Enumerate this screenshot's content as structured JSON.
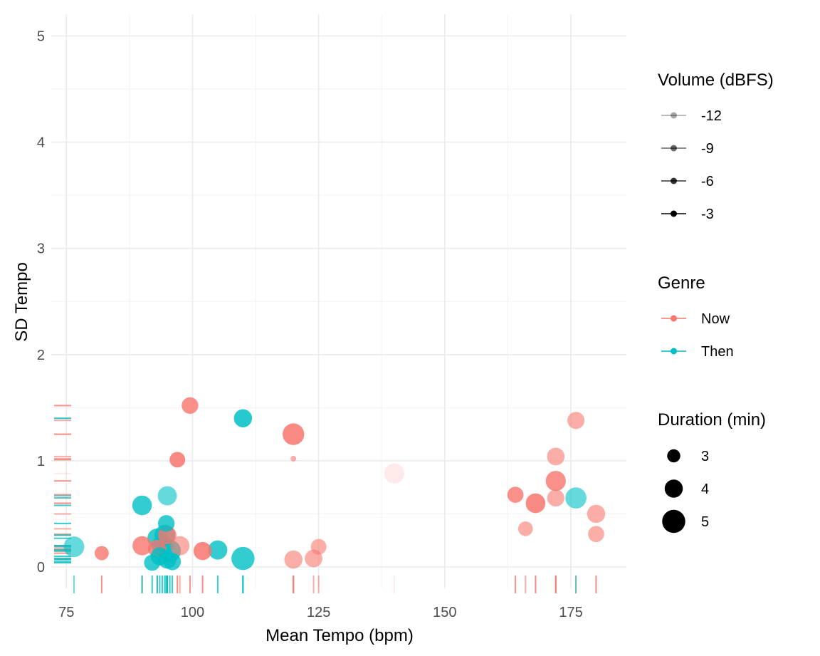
{
  "chart_data": {
    "type": "scatter",
    "title": "",
    "xlabel": "Mean Tempo (bpm)",
    "ylabel": "SD Tempo",
    "xlim": [
      72,
      186
    ],
    "ylim": [
      0,
      5.2
    ],
    "xticks": [
      75,
      100,
      125,
      150,
      175
    ],
    "yticks": [
      0,
      1,
      2,
      3,
      4,
      5
    ],
    "grid": true,
    "legend_position": "right",
    "legends": {
      "volume": {
        "title": "Volume (dBFS)",
        "entries": [
          {
            "label": "-12",
            "alpha": 0.35
          },
          {
            "label": "-9",
            "alpha": 0.6
          },
          {
            "label": "-6",
            "alpha": 0.8
          },
          {
            "label": "-3",
            "alpha": 1.0
          }
        ]
      },
      "genre": {
        "title": "Genre",
        "entries": [
          {
            "label": "Now",
            "color": "#F8766D"
          },
          {
            "label": "Then",
            "color": "#00BFC4"
          }
        ]
      },
      "duration": {
        "title": "Duration (min)",
        "entries": [
          {
            "label": "3",
            "value": 3
          },
          {
            "label": "4",
            "value": 4
          },
          {
            "label": "5",
            "value": 5
          }
        ]
      }
    },
    "series": [
      {
        "name": "Now",
        "color": "#F8766D",
        "points": [
          {
            "x": 82,
            "y": 0.13,
            "duration": 3.2,
            "alpha": 0.8
          },
          {
            "x": 90,
            "y": 0.2,
            "duration": 4.2,
            "alpha": 0.8
          },
          {
            "x": 93,
            "y": 0.17,
            "duration": 4.0,
            "alpha": 0.8
          },
          {
            "x": 95,
            "y": 0.3,
            "duration": 4.0,
            "alpha": 0.8
          },
          {
            "x": 97,
            "y": 1.01,
            "duration": 3.5,
            "alpha": 0.85
          },
          {
            "x": 97.5,
            "y": 0.2,
            "duration": 4.2,
            "alpha": 0.6
          },
          {
            "x": 99.5,
            "y": 1.52,
            "duration": 3.7,
            "alpha": 0.8
          },
          {
            "x": 102,
            "y": 0.15,
            "duration": 4.0,
            "alpha": 0.85
          },
          {
            "x": 120,
            "y": 1.25,
            "duration": 4.7,
            "alpha": 0.85
          },
          {
            "x": 120,
            "y": 1.02,
            "duration": 1.5,
            "alpha": 0.6
          },
          {
            "x": 120,
            "y": 0.07,
            "duration": 4.0,
            "alpha": 0.6
          },
          {
            "x": 124,
            "y": 0.08,
            "duration": 3.9,
            "alpha": 0.6
          },
          {
            "x": 125,
            "y": 0.19,
            "duration": 3.5,
            "alpha": 0.6
          },
          {
            "x": 140,
            "y": 0.88,
            "duration": 4.4,
            "alpha": 0.15
          },
          {
            "x": 164,
            "y": 0.68,
            "duration": 3.6,
            "alpha": 0.8
          },
          {
            "x": 166,
            "y": 0.36,
            "duration": 3.3,
            "alpha": 0.6
          },
          {
            "x": 168,
            "y": 0.6,
            "duration": 4.3,
            "alpha": 0.85
          },
          {
            "x": 172,
            "y": 1.04,
            "duration": 3.9,
            "alpha": 0.6
          },
          {
            "x": 172,
            "y": 0.81,
            "duration": 4.4,
            "alpha": 0.8
          },
          {
            "x": 172,
            "y": 0.65,
            "duration": 3.8,
            "alpha": 0.6
          },
          {
            "x": 176,
            "y": 1.38,
            "duration": 3.8,
            "alpha": 0.6
          },
          {
            "x": 180,
            "y": 0.5,
            "duration": 4.0,
            "alpha": 0.6
          },
          {
            "x": 180,
            "y": 0.31,
            "duration": 3.6,
            "alpha": 0.6
          }
        ]
      },
      {
        "name": "Then",
        "color": "#00BFC4",
        "points": [
          {
            "x": 76.5,
            "y": 0.19,
            "duration": 4.5,
            "alpha": 0.6
          },
          {
            "x": 90,
            "y": 0.58,
            "duration": 4.3,
            "alpha": 0.8
          },
          {
            "x": 92,
            "y": 0.04,
            "duration": 3.6,
            "alpha": 0.8
          },
          {
            "x": 93,
            "y": 0.27,
            "duration": 4.3,
            "alpha": 0.8
          },
          {
            "x": 93.5,
            "y": 0.1,
            "duration": 4.0,
            "alpha": 0.8
          },
          {
            "x": 94,
            "y": 0.2,
            "duration": 4.6,
            "alpha": 0.8
          },
          {
            "x": 94.5,
            "y": 0.3,
            "duration": 4.5,
            "alpha": 0.8
          },
          {
            "x": 94.8,
            "y": 0.41,
            "duration": 3.7,
            "alpha": 0.8
          },
          {
            "x": 95,
            "y": 0.67,
            "duration": 4.2,
            "alpha": 0.6
          },
          {
            "x": 95,
            "y": 0.07,
            "duration": 4.0,
            "alpha": 0.8
          },
          {
            "x": 95.5,
            "y": 0.15,
            "duration": 4.8,
            "alpha": 0.8
          },
          {
            "x": 96,
            "y": 0.05,
            "duration": 3.8,
            "alpha": 0.8
          },
          {
            "x": 105,
            "y": 0.16,
            "duration": 4.2,
            "alpha": 0.8
          },
          {
            "x": 110,
            "y": 1.4,
            "duration": 4.0,
            "alpha": 0.85
          },
          {
            "x": 110,
            "y": 0.08,
            "duration": 5.0,
            "alpha": 0.8
          },
          {
            "x": 176,
            "y": 0.65,
            "duration": 4.6,
            "alpha": 0.6
          }
        ]
      }
    ]
  }
}
